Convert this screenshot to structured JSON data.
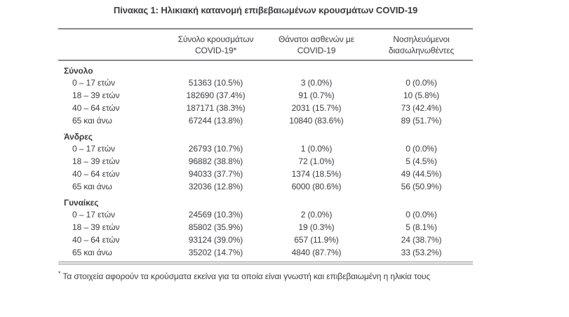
{
  "page": {
    "title": "Πίνακας 1: Ηλικιακή κατανομή επιβεβαιωμένων κρουσμάτων COVID-19"
  },
  "table": {
    "header": {
      "col_cases": {
        "line1": "Σύνολο κρουσμάτων",
        "line2": "COVID-19*"
      },
      "col_deaths": {
        "line1": "Θάνατοι ασθενών με",
        "line2": "COVID-19"
      },
      "col_intubated": {
        "line1": "Νοσηλευόμενοι",
        "line2": "διασωληνωθέντες"
      }
    },
    "sections": [
      {
        "label": "Σύνολο",
        "rows": [
          {
            "label": "0 – 17 ετών",
            "cases": "51363 (10.5%)",
            "deaths": "3 (0.0%)",
            "intubated": "0 (0.0%)"
          },
          {
            "label": "18 – 39 ετών",
            "cases": "182690 (37.4%)",
            "deaths": "91 (0.7%)",
            "intubated": "10 (5.8%)"
          },
          {
            "label": "40 – 64 ετών",
            "cases": "187171 (38.3%)",
            "deaths": "2031 (15.7%)",
            "intubated": "73 (42.4%)"
          },
          {
            "label": "65 και άνω",
            "cases": "67244 (13.8%)",
            "deaths": "10840 (83.6%)",
            "intubated": "89 (51.7%)"
          }
        ]
      },
      {
        "label": "Άνδρες",
        "rows": [
          {
            "label": "0 – 17 ετών",
            "cases": "26793 (10.7%)",
            "deaths": "1 (0.0%)",
            "intubated": "0 (0.0%)"
          },
          {
            "label": "18 – 39 ετών",
            "cases": "96882 (38.8%)",
            "deaths": "72 (1.0%)",
            "intubated": "5 (4.5%)"
          },
          {
            "label": "40 – 64 ετών",
            "cases": "94033 (37.7%)",
            "deaths": "1374 (18.5%)",
            "intubated": "49 (44.5%)"
          },
          {
            "label": "65 και άνω",
            "cases": "32036 (12.8%)",
            "deaths": "6000 (80.6%)",
            "intubated": "56 (50.9%)"
          }
        ]
      },
      {
        "label": "Γυναίκες",
        "rows": [
          {
            "label": "0 – 17 ετών",
            "cases": "24569 (10.3%)",
            "deaths": "2 (0.0%)",
            "intubated": "0 (0.0%)"
          },
          {
            "label": "18 – 39 ετών",
            "cases": "85802 (35.9%)",
            "deaths": "19 (0.3%)",
            "intubated": "5 (8.1%)"
          },
          {
            "label": "40 – 64 ετών",
            "cases": "93124 (39.0%)",
            "deaths": "657 (11.9%)",
            "intubated": "24 (38.7%)"
          },
          {
            "label": "65 και άνω",
            "cases": "35202 (14.7%)",
            "deaths": "4840 (87.7%)",
            "intubated": "33 (53.2%)"
          }
        ]
      }
    ],
    "footnote": {
      "marker": "*",
      "text": "Τα στοιχεία αφορούν τα κρούσματα εκείνα για τα οποία είναι γνωστή και επιβεβαιωμένη η ηλικία τους"
    }
  },
  "colors": {
    "text": "#3b3d42",
    "rule": "#86888b"
  }
}
